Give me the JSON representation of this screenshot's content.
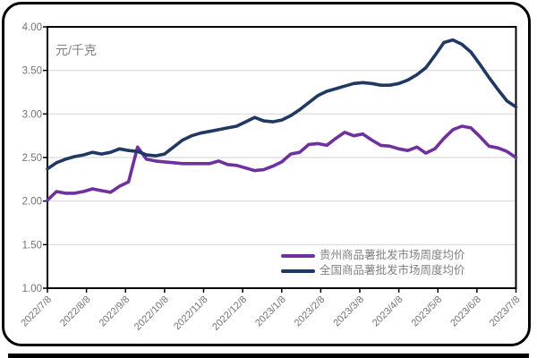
{
  "chart_data": {
    "type": "line",
    "title": "",
    "unit_label": "元/千克",
    "xlabel": "",
    "ylabel": "",
    "ylim": [
      1.0,
      4.0
    ],
    "y_tick_labels": [
      "1.00",
      "1.50",
      "2.00",
      "2.50",
      "3.00",
      "3.50",
      "4.00"
    ],
    "x_tick_labels": [
      "2022/7/8",
      "2022/8/8",
      "2022/9/8",
      "2022/10/8",
      "2022/11/8",
      "2022/12/8",
      "2023/1/8",
      "2023/2/8",
      "2023/3/8",
      "2023/4/8",
      "2023/5/8",
      "2023/6/8",
      "2023/7/8"
    ],
    "x_unit": "week",
    "grid": "horizontal",
    "legend_position": "inside-bottom-right",
    "series": [
      {
        "name": "贵州商品薯批发市场周度均价",
        "color": "#7030A0",
        "values": [
          2.01,
          2.11,
          2.09,
          2.09,
          2.11,
          2.14,
          2.12,
          2.1,
          2.17,
          2.22,
          2.62,
          2.48,
          2.46,
          2.45,
          2.44,
          2.43,
          2.43,
          2.43,
          2.43,
          2.46,
          2.42,
          2.41,
          2.38,
          2.35,
          2.36,
          2.4,
          2.45,
          2.54,
          2.56,
          2.65,
          2.66,
          2.64,
          2.72,
          2.79,
          2.75,
          2.77,
          2.7,
          2.64,
          2.63,
          2.6,
          2.58,
          2.62,
          2.55,
          2.6,
          2.72,
          2.82,
          2.86,
          2.84,
          2.74,
          2.63,
          2.61,
          2.57,
          2.5
        ]
      },
      {
        "name": "全国商品薯批发市场周度均价",
        "color": "#1F3864",
        "values": [
          2.37,
          2.44,
          2.48,
          2.51,
          2.53,
          2.56,
          2.54,
          2.56,
          2.6,
          2.58,
          2.57,
          2.53,
          2.52,
          2.54,
          2.62,
          2.7,
          2.75,
          2.78,
          2.8,
          2.82,
          2.84,
          2.86,
          2.91,
          2.96,
          2.92,
          2.91,
          2.93,
          2.98,
          3.05,
          3.13,
          3.21,
          3.26,
          3.29,
          3.32,
          3.35,
          3.36,
          3.35,
          3.33,
          3.33,
          3.35,
          3.39,
          3.45,
          3.53,
          3.67,
          3.82,
          3.85,
          3.8,
          3.71,
          3.57,
          3.42,
          3.28,
          3.15,
          3.08
        ]
      }
    ]
  },
  "colors": {
    "axis_text": "#737373",
    "unit_text": "#808080",
    "legend_text": "#808080",
    "gridline": "#D9D9D9",
    "plot_border": "#000000",
    "frame_border": "#000000",
    "guizhou_line": "#7030A0",
    "national_line": "#1F3864"
  }
}
